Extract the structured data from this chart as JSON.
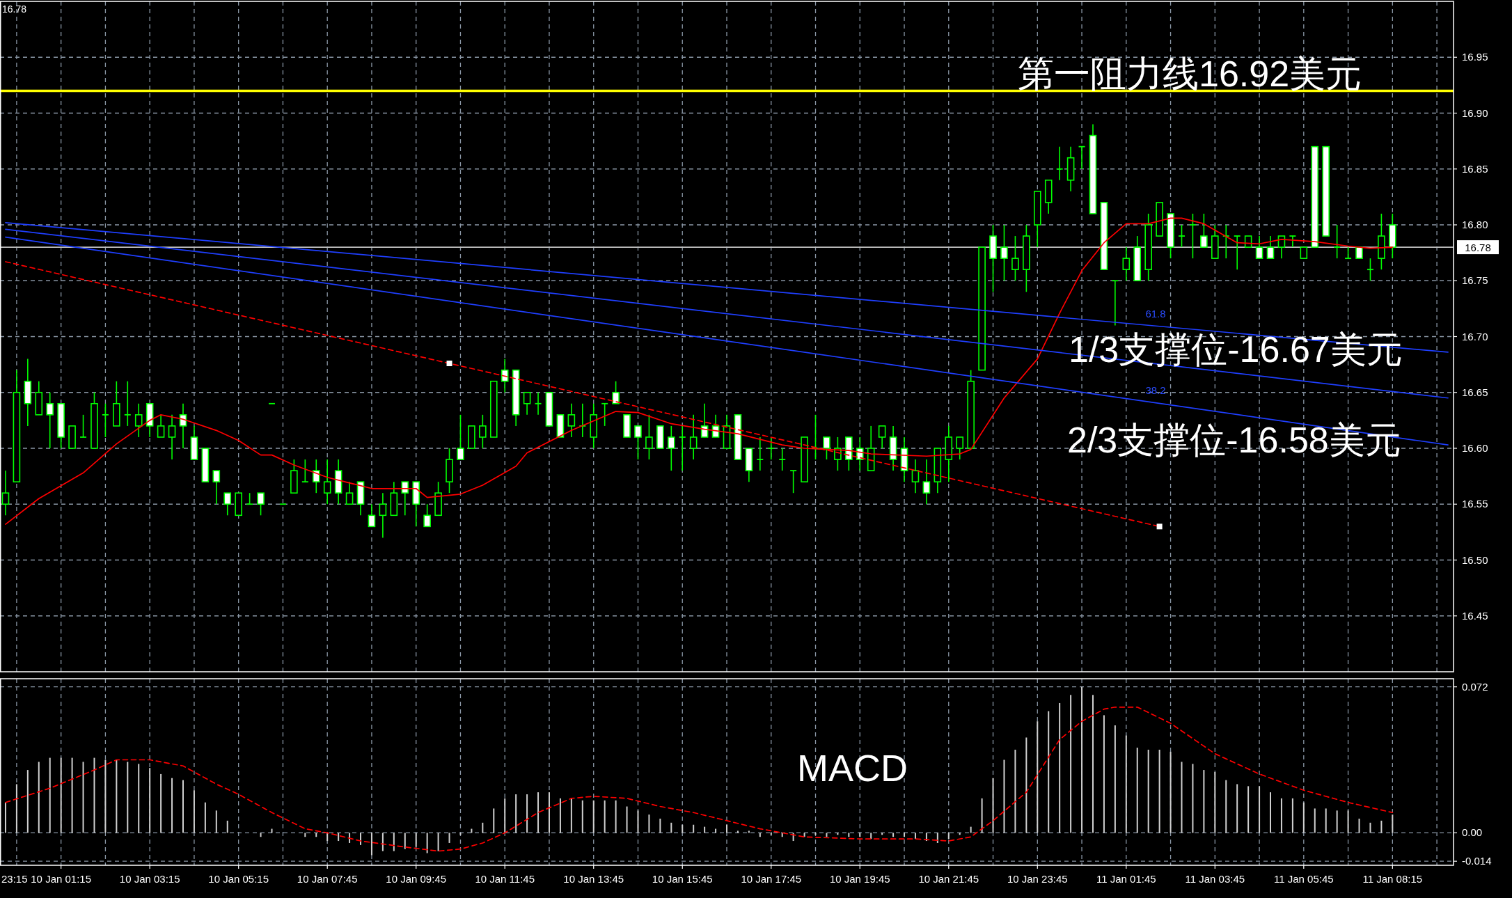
{
  "chart_data": [
    {
      "type": "candlestick",
      "color": "#00ff00",
      "tick_labels": "y",
      "grid": true,
      "categories": [
        null,
        null,
        null,
        null,
        null,
        null,
        null,
        null,
        null,
        null,
        null,
        null,
        null,
        null,
        null,
        null,
        null,
        null,
        null,
        null,
        null,
        null,
        null,
        null,
        null,
        null,
        null,
        null,
        null,
        null,
        null,
        null,
        null,
        null,
        null,
        null,
        null,
        null,
        null,
        null,
        null,
        null,
        null,
        null,
        null,
        null,
        null,
        null,
        null,
        null,
        null,
        null,
        null,
        null,
        null,
        null,
        null,
        null,
        null,
        null,
        null,
        null,
        null,
        null,
        null,
        null,
        null,
        null,
        null,
        null,
        null,
        null,
        null,
        null,
        null,
        null,
        null,
        null,
        null,
        null,
        null,
        null,
        null,
        null,
        null,
        null,
        null,
        null,
        null,
        null,
        null,
        null,
        null,
        null,
        null,
        null,
        null,
        null,
        null,
        null,
        null,
        null,
        null,
        null,
        null,
        null,
        null,
        null,
        null,
        null,
        null,
        null,
        null,
        null,
        null,
        null,
        null,
        null,
        null,
        null,
        null,
        null,
        null,
        null,
        null,
        null,
        null,
        null,
        null,
        null,
        null
      ],
      "ohlc": [
        [
          16.55,
          16.58,
          16.54,
          16.56
        ],
        [
          16.57,
          16.67,
          16.57,
          16.65
        ],
        [
          16.66,
          16.68,
          16.62,
          16.64
        ],
        [
          16.63,
          16.66,
          16.63,
          16.65
        ],
        [
          16.64,
          16.65,
          16.6,
          16.63
        ],
        [
          16.64,
          16.64,
          16.6,
          16.61
        ],
        [
          16.6,
          16.62,
          16.6,
          16.62
        ],
        [
          16.61,
          16.63,
          16.61,
          16.61
        ],
        [
          16.6,
          16.65,
          16.6,
          16.64
        ],
        [
          16.63,
          16.64,
          16.61,
          16.63
        ],
        [
          16.62,
          16.66,
          16.62,
          16.64
        ],
        [
          16.63,
          16.66,
          16.62,
          16.63
        ],
        [
          16.62,
          16.64,
          16.61,
          16.63
        ],
        [
          16.64,
          16.64,
          16.61,
          16.62
        ],
        [
          16.61,
          16.63,
          16.61,
          16.62
        ],
        [
          16.61,
          16.63,
          16.59,
          16.62
        ],
        [
          16.63,
          16.64,
          16.6,
          16.62
        ],
        [
          16.61,
          16.62,
          16.59,
          16.59
        ],
        [
          16.6,
          16.6,
          16.57,
          16.57
        ],
        [
          16.58,
          16.58,
          16.55,
          16.57
        ],
        [
          16.56,
          16.56,
          16.54,
          16.55
        ],
        [
          16.54,
          16.56,
          16.54,
          16.56
        ],
        [
          16.55,
          16.56,
          16.55,
          16.55
        ],
        [
          16.56,
          16.56,
          16.54,
          16.55
        ],
        [
          16.64,
          16.64,
          16.64,
          16.64
        ],
        [
          16.55,
          16.55,
          16.55,
          16.55
        ],
        [
          16.56,
          16.59,
          16.56,
          16.58
        ],
        [
          16.57,
          16.59,
          16.57,
          16.57
        ],
        [
          16.58,
          16.59,
          16.56,
          16.57
        ],
        [
          16.56,
          16.59,
          16.55,
          16.57
        ],
        [
          16.58,
          16.59,
          16.55,
          16.56
        ],
        [
          16.55,
          16.57,
          16.55,
          16.56
        ],
        [
          16.57,
          16.57,
          16.54,
          16.55
        ],
        [
          16.54,
          16.55,
          16.53,
          16.53
        ],
        [
          16.54,
          16.56,
          16.52,
          16.55
        ],
        [
          16.54,
          16.57,
          16.54,
          16.56
        ],
        [
          16.57,
          16.57,
          16.54,
          16.56
        ],
        [
          16.57,
          16.57,
          16.53,
          16.55
        ],
        [
          16.54,
          16.55,
          16.53,
          16.53
        ],
        [
          16.54,
          16.57,
          16.54,
          16.56
        ],
        [
          16.57,
          16.6,
          16.56,
          16.59
        ],
        [
          16.6,
          16.63,
          16.59,
          16.59
        ],
        [
          16.6,
          16.62,
          16.6,
          16.62
        ],
        [
          16.61,
          16.63,
          16.6,
          16.62
        ],
        [
          16.61,
          16.66,
          16.61,
          16.66
        ],
        [
          16.67,
          16.68,
          16.65,
          16.66
        ],
        [
          16.67,
          16.67,
          16.62,
          16.63
        ],
        [
          16.64,
          16.65,
          16.63,
          16.65
        ],
        [
          16.64,
          16.65,
          16.63,
          16.64
        ],
        [
          16.65,
          16.65,
          16.62,
          16.62
        ],
        [
          16.63,
          16.63,
          16.61,
          16.61
        ],
        [
          16.62,
          16.64,
          16.61,
          16.63
        ],
        [
          16.62,
          16.64,
          16.61,
          16.62
        ],
        [
          16.61,
          16.64,
          16.6,
          16.63
        ],
        [
          16.64,
          16.64,
          16.62,
          16.64
        ],
        [
          16.65,
          16.66,
          16.64,
          16.64
        ],
        [
          16.63,
          16.63,
          16.61,
          16.61
        ],
        [
          16.62,
          16.62,
          16.59,
          16.61
        ],
        [
          16.6,
          16.63,
          16.59,
          16.61
        ],
        [
          16.62,
          16.62,
          16.6,
          16.6
        ],
        [
          16.61,
          16.62,
          16.58,
          16.6
        ],
        [
          16.61,
          16.62,
          16.58,
          16.61
        ],
        [
          16.6,
          16.63,
          16.59,
          16.61
        ],
        [
          16.62,
          16.64,
          16.61,
          16.61
        ],
        [
          16.62,
          16.63,
          16.61,
          16.61
        ],
        [
          16.6,
          16.63,
          16.6,
          16.62
        ],
        [
          16.63,
          16.63,
          16.59,
          16.59
        ],
        [
          16.6,
          16.6,
          16.57,
          16.58
        ],
        [
          16.59,
          16.61,
          16.58,
          16.59
        ],
        [
          16.6,
          16.61,
          16.59,
          16.6
        ],
        [
          16.59,
          16.6,
          16.58,
          16.59
        ],
        [
          16.58,
          16.58,
          16.56,
          16.58
        ],
        [
          16.57,
          16.61,
          16.57,
          16.61
        ],
        [
          16.6,
          16.63,
          16.59,
          16.6
        ],
        [
          16.61,
          16.61,
          16.59,
          16.6
        ],
        [
          16.59,
          16.61,
          16.58,
          16.6
        ],
        [
          16.61,
          16.61,
          16.58,
          16.59
        ],
        [
          16.6,
          16.61,
          16.58,
          16.59
        ],
        [
          16.58,
          16.62,
          16.58,
          16.6
        ],
        [
          16.61,
          16.62,
          16.6,
          16.62
        ],
        [
          16.61,
          16.62,
          16.58,
          16.59
        ],
        [
          16.6,
          16.61,
          16.57,
          16.58
        ],
        [
          16.57,
          16.59,
          16.56,
          16.58
        ],
        [
          16.57,
          16.59,
          16.55,
          16.56
        ],
        [
          16.57,
          16.6,
          16.56,
          16.6
        ],
        [
          16.59,
          16.62,
          16.57,
          16.61
        ],
        [
          16.6,
          16.61,
          16.59,
          16.61
        ],
        [
          16.6,
          16.67,
          16.6,
          16.66
        ],
        [
          16.67,
          16.78,
          16.67,
          16.78
        ],
        [
          16.79,
          16.8,
          16.74,
          16.77
        ],
        [
          16.78,
          16.8,
          16.75,
          16.77
        ],
        [
          16.76,
          16.79,
          16.75,
          16.77
        ],
        [
          16.76,
          16.8,
          16.74,
          16.79
        ],
        [
          16.8,
          16.83,
          16.78,
          16.83
        ],
        [
          16.82,
          16.84,
          16.81,
          16.84
        ],
        [
          16.85,
          16.87,
          16.84,
          16.85
        ],
        [
          16.84,
          16.87,
          16.83,
          16.86
        ],
        [
          16.87,
          16.87,
          16.85,
          16.87
        ],
        [
          16.88,
          16.89,
          16.81,
          16.81
        ],
        [
          16.82,
          16.82,
          16.76,
          16.76
        ],
        [
          16.75,
          16.75,
          16.71,
          16.75
        ],
        [
          16.76,
          16.78,
          16.75,
          16.77
        ],
        [
          16.78,
          16.79,
          16.75,
          16.75
        ],
        [
          16.76,
          16.81,
          16.75,
          16.8
        ],
        [
          16.79,
          16.82,
          16.79,
          16.82
        ],
        [
          16.81,
          16.81,
          16.77,
          16.78
        ],
        [
          16.79,
          16.8,
          16.78,
          16.79
        ],
        [
          16.8,
          16.81,
          16.77,
          16.8
        ],
        [
          16.79,
          16.81,
          16.78,
          16.78
        ],
        [
          16.77,
          16.8,
          16.77,
          16.79
        ],
        [
          16.79,
          16.8,
          16.77,
          16.79
        ],
        [
          16.79,
          16.79,
          16.76,
          16.79
        ],
        [
          16.78,
          16.79,
          16.78,
          16.79
        ],
        [
          16.78,
          16.79,
          16.77,
          16.77
        ],
        [
          16.78,
          16.79,
          16.77,
          16.77
        ],
        [
          16.78,
          16.79,
          16.77,
          16.79
        ],
        [
          16.79,
          16.79,
          16.78,
          16.79
        ],
        [
          16.77,
          16.78,
          16.77,
          16.78
        ],
        [
          16.87,
          16.87,
          16.78,
          16.78
        ],
        [
          16.87,
          16.87,
          16.79,
          16.79
        ],
        [
          16.78,
          16.8,
          16.77,
          16.78
        ],
        [
          16.77,
          16.78,
          16.77,
          16.77
        ],
        [
          16.78,
          16.78,
          16.77,
          16.77
        ],
        [
          16.76,
          16.77,
          16.75,
          16.76
        ],
        [
          16.77,
          16.81,
          16.76,
          16.79
        ],
        [
          16.8,
          16.81,
          16.77,
          16.78
        ],
        null,
        null,
        null,
        null,
        null
      ],
      "series": [
        {
          "type": "line",
          "color": "#ff0000",
          "line_style": "solid",
          "values": [
            16.532,
            null,
            null,
            16.555,
            null,
            null,
            null,
            16.578,
            null,
            null,
            16.604,
            null,
            null,
            16.625,
            16.63,
            null,
            16.626,
            null,
            null,
            16.616,
            null,
            16.607,
            null,
            16.594,
            16.594,
            null,
            16.585,
            null,
            null,
            16.574,
            null,
            null,
            null,
            16.564,
            null,
            null,
            null,
            16.564,
            16.556,
            null,
            null,
            16.559,
            null,
            16.567,
            null,
            null,
            16.584,
            16.596,
            null,
            null,
            null,
            16.616,
            null,
            null,
            null,
            16.633,
            null,
            16.632,
            null,
            null,
            16.622,
            null,
            null,
            16.617,
            null,
            null,
            16.613,
            null,
            null,
            null,
            16.603,
            null,
            16.6,
            null,
            null,
            null,
            16.598,
            null,
            16.595,
            null,
            null,
            null,
            null,
            16.593,
            null,
            null,
            16.595,
            16.599,
            null,
            null,
            16.645,
            null,
            null,
            16.68,
            null,
            16.721,
            null,
            16.759,
            null,
            16.784,
            null,
            16.801,
            null,
            16.801,
            null,
            16.806,
            16.806,
            null,
            16.801,
            null,
            null,
            16.784,
            null,
            16.783,
            null,
            16.787,
            null,
            null,
            16.785,
            null,
            null,
            16.781,
            null,
            16.779,
            null,
            16.78,
            null,
            null,
            null,
            null,
            null
          ]
        },
        {
          "type": "line",
          "color": "#1f3fff",
          "line_style": "solid",
          "values": [
            16.802,
            null,
            null,
            null,
            null,
            null,
            null,
            null,
            null,
            null,
            null,
            null,
            null,
            null,
            null,
            null,
            null,
            null,
            null,
            null,
            null,
            null,
            null,
            null,
            null,
            null,
            null,
            null,
            null,
            null,
            null,
            null,
            null,
            null,
            null,
            null,
            null,
            null,
            null,
            null,
            null,
            null,
            null,
            null,
            null,
            null,
            null,
            null,
            null,
            null,
            null,
            null,
            null,
            null,
            null,
            null,
            null,
            null,
            null,
            null,
            null,
            null,
            null,
            null,
            null,
            null,
            null,
            null,
            null,
            null,
            null,
            null,
            null,
            null,
            null,
            null,
            null,
            null,
            null,
            null,
            null,
            null,
            null,
            null,
            null,
            null,
            null,
            null,
            null,
            null,
            null,
            null,
            null,
            null,
            null,
            null,
            null,
            null,
            null,
            null,
            null,
            null,
            null,
            null,
            null,
            null,
            null,
            null,
            null,
            null,
            null,
            null,
            null,
            null,
            null,
            null,
            null,
            null,
            null,
            null,
            null,
            null,
            null,
            null,
            null,
            null,
            null,
            null,
            null,
            null,
            16.686
          ]
        },
        {
          "type": "line",
          "color": "#1f3fff",
          "line_style": "solid",
          "values": [
            16.796,
            null,
            null,
            null,
            null,
            null,
            null,
            null,
            null,
            null,
            null,
            null,
            null,
            null,
            null,
            null,
            null,
            null,
            null,
            null,
            null,
            null,
            null,
            null,
            null,
            null,
            null,
            null,
            null,
            null,
            null,
            null,
            null,
            null,
            null,
            null,
            null,
            null,
            null,
            null,
            null,
            null,
            null,
            null,
            null,
            null,
            null,
            null,
            null,
            null,
            null,
            null,
            null,
            null,
            null,
            null,
            null,
            null,
            null,
            null,
            null,
            null,
            null,
            null,
            null,
            null,
            null,
            null,
            null,
            null,
            null,
            null,
            null,
            null,
            null,
            null,
            null,
            null,
            null,
            null,
            null,
            null,
            null,
            null,
            null,
            null,
            null,
            null,
            null,
            null,
            null,
            null,
            null,
            null,
            null,
            null,
            null,
            null,
            null,
            null,
            null,
            null,
            null,
            null,
            null,
            null,
            null,
            null,
            null,
            null,
            null,
            null,
            null,
            null,
            null,
            null,
            null,
            null,
            null,
            null,
            null,
            null,
            null,
            null,
            null,
            null,
            null,
            null,
            null,
            null,
            16.645
          ]
        },
        {
          "type": "line",
          "color": "#1f3fff",
          "line_style": "solid",
          "values": [
            16.789,
            null,
            null,
            null,
            null,
            null,
            null,
            null,
            null,
            null,
            null,
            null,
            null,
            null,
            null,
            null,
            null,
            null,
            null,
            null,
            null,
            null,
            null,
            null,
            null,
            null,
            null,
            null,
            null,
            null,
            null,
            null,
            null,
            null,
            null,
            null,
            null,
            null,
            null,
            null,
            null,
            null,
            null,
            null,
            null,
            null,
            null,
            null,
            null,
            null,
            null,
            null,
            null,
            null,
            null,
            null,
            null,
            null,
            null,
            null,
            null,
            null,
            null,
            null,
            null,
            null,
            null,
            null,
            null,
            null,
            null,
            null,
            null,
            null,
            null,
            null,
            null,
            null,
            null,
            null,
            null,
            null,
            null,
            null,
            null,
            null,
            null,
            null,
            null,
            null,
            null,
            null,
            null,
            null,
            null,
            null,
            null,
            null,
            null,
            null,
            null,
            null,
            null,
            null,
            null,
            null,
            null,
            null,
            null,
            null,
            null,
            null,
            null,
            null,
            null,
            null,
            null,
            null,
            null,
            null,
            null,
            null,
            null,
            null,
            null,
            null,
            null,
            null,
            null,
            null,
            16.603
          ]
        },
        {
          "type": "line",
          "color": "#ff0000",
          "line_style": "dashed",
          "values": [
            16.767,
            null,
            null,
            null,
            null,
            null,
            null,
            null,
            null,
            null,
            null,
            null,
            null,
            null,
            null,
            null,
            null,
            null,
            null,
            null,
            null,
            null,
            null,
            null,
            null,
            null,
            null,
            null,
            null,
            null,
            null,
            null,
            null,
            null,
            null,
            null,
            null,
            null,
            null,
            null,
            16.676,
            null,
            null,
            null,
            null,
            null,
            null,
            null,
            null,
            null,
            null,
            null,
            null,
            null,
            null,
            null,
            null,
            null,
            null,
            null,
            null,
            null,
            null,
            null,
            null,
            null,
            null,
            null,
            null,
            null,
            null,
            null,
            null,
            null,
            null,
            null,
            null,
            null,
            null,
            null,
            null,
            null,
            null,
            null,
            null,
            null,
            null,
            null,
            null,
            null,
            null,
            null,
            null,
            null,
            null,
            null,
            null,
            null,
            null,
            null,
            null,
            null,
            null,
            null,
            16.53,
            null,
            null,
            null,
            null,
            null,
            null,
            null,
            null,
            null,
            null,
            null,
            null,
            null,
            null,
            null,
            null,
            null,
            null,
            null,
            null,
            null,
            null,
            null,
            null,
            null,
            null
          ]
        },
        {
          "type": "scatter",
          "color": "#ffffff",
          "marker": "square",
          "values": [
            null,
            null,
            null,
            null,
            null,
            null,
            null,
            null,
            null,
            null,
            null,
            null,
            null,
            null,
            null,
            null,
            null,
            null,
            null,
            null,
            null,
            null,
            null,
            null,
            null,
            null,
            null,
            null,
            null,
            null,
            null,
            null,
            null,
            null,
            null,
            null,
            null,
            null,
            null,
            null,
            16.676,
            null,
            null,
            null,
            null,
            null,
            null,
            null,
            null,
            null,
            null,
            null,
            null,
            null,
            null,
            null,
            null,
            null,
            null,
            null,
            null,
            null,
            null,
            null,
            null,
            null,
            null,
            null,
            null,
            null,
            null,
            null,
            null,
            null,
            null,
            null,
            null,
            null,
            null,
            null,
            null,
            null,
            null,
            null,
            null,
            null,
            null,
            null,
            null,
            null,
            null,
            null,
            null,
            null,
            null,
            null,
            null,
            null,
            null,
            null,
            null,
            null,
            null,
            null,
            16.53,
            null,
            null,
            null,
            null,
            null,
            null,
            null,
            null,
            null,
            null,
            null,
            null,
            null,
            null,
            null,
            null,
            null,
            null,
            null,
            null,
            null,
            null,
            null,
            null,
            null,
            null
          ]
        }
      ],
      "ylim": [
        16.4,
        17.0
      ],
      "yticks": [
        {
          "value": 16.45,
          "label": "16.45"
        },
        {
          "value": 16.5,
          "label": "16.50"
        },
        16.55,
        {
          "value": 16.6,
          "label": "16.60"
        },
        16.65,
        {
          "value": 16.7,
          "label": "16.70"
        },
        16.75,
        {
          "value": 16.8,
          "label": "16.80"
        },
        16.85,
        {
          "value": 16.9,
          "label": "16.90"
        },
        16.95
      ],
      "ref_lines": [
        {
          "axis": "y",
          "value": 16.92,
          "color": "#ffff00"
        },
        {
          "axis": "y",
          "value": 16.78,
          "color": "#c0c0c0",
          "label": "16.78"
        }
      ],
      "annotations": [
        "16.78",
        "61.8",
        "38.2",
        "第一阻力线16.92美元",
        "1/3支撑位-16.67美元",
        "2/3支撑位-16.58美元"
      ]
    },
    {
      "type": "bar",
      "grid": true,
      "categories": [
        null,
        null,
        null,
        null,
        null,
        "10 Jan 01:15",
        null,
        null,
        null,
        null,
        null,
        null,
        null,
        "10 Jan 03:15",
        null,
        null,
        null,
        null,
        null,
        null,
        null,
        "10 Jan 05:15",
        null,
        null,
        null,
        null,
        null,
        null,
        null,
        "10 Jan 07:45",
        null,
        null,
        null,
        null,
        null,
        null,
        null,
        "10 Jan 09:45",
        null,
        null,
        null,
        null,
        null,
        null,
        null,
        "10 Jan 11:45",
        null,
        null,
        null,
        null,
        null,
        null,
        null,
        "10 Jan 13:45",
        null,
        null,
        null,
        null,
        null,
        null,
        null,
        "10 Jan 15:45",
        null,
        null,
        null,
        null,
        null,
        null,
        null,
        "10 Jan 17:45",
        null,
        null,
        null,
        null,
        null,
        null,
        null,
        "10 Jan 19:45",
        null,
        null,
        null,
        null,
        null,
        null,
        null,
        "10 Jan 21:45",
        null,
        null,
        null,
        null,
        null,
        null,
        null,
        "10 Jan 23:45",
        null,
        null,
        null,
        null,
        null,
        null,
        null,
        "11 Jan 01:45",
        null,
        null,
        null,
        null,
        null,
        null,
        null,
        "11 Jan 03:45",
        null,
        null,
        null,
        null,
        null,
        null,
        null,
        "11 Jan 05:45",
        null,
        null,
        null,
        null,
        null,
        null,
        null,
        "11 Jan 08:15",
        null,
        null,
        null,
        null,
        null
      ],
      "series": [
        {
          "type": "bar",
          "color": "#d0d0d0",
          "values": [
            0.015,
            0.024,
            0.031,
            0.035,
            0.037,
            0.037,
            0.037,
            0.035,
            0.037,
            0.036,
            0.036,
            0.035,
            0.034,
            0.032,
            0.029,
            0.027,
            0.026,
            0.021,
            0.015,
            0.011,
            0.006,
            0,
            0,
            -0.002,
            0.002,
            0,
            0,
            -0.002,
            -0.002,
            -0.004,
            -0.004,
            -0.005,
            -0.006,
            -0.011,
            -0.009,
            -0.009,
            -0.008,
            -0.007,
            -0.01,
            -0.009,
            -0.005,
            -0.001,
            0.002,
            0.005,
            0.012,
            0.017,
            0.019,
            0.019,
            0.02,
            0.02,
            0.017,
            0.017,
            0.016,
            0.016,
            0.016,
            0.016,
            0.013,
            0.011,
            0.009,
            0.007,
            0.005,
            0.004,
            0.004,
            0.003,
            0.002,
            0.004,
            0.001,
            0.001,
            -0.002,
            -0.001,
            -0.002,
            -0.004,
            -0.002,
            -0.001,
            -0.002,
            -0.001,
            -0.002,
            -0.002,
            -0.003,
            -0.001,
            -0.002,
            -0.002,
            -0.003,
            -0.004,
            -0.005,
            -0.003,
            -0.001,
            0.003,
            0.017,
            0.027,
            0.036,
            0.041,
            0.047,
            0.055,
            0.06,
            0.064,
            0.068,
            0.072,
            0.068,
            0.058,
            0.053,
            0.048,
            0.042,
            0.041,
            0.041,
            0.04,
            0.035,
            0.034,
            0.031,
            0.03,
            0.026,
            0.024,
            0.023,
            0.023,
            0.02,
            0.017,
            0.017,
            0.015,
            0.012,
            0.012,
            0.011,
            0.011,
            0.007,
            0.005,
            0.006,
            0.009,
            null,
            null,
            null,
            null,
            null
          ]
        },
        {
          "type": "line",
          "color": "#ff0000",
          "line_style": "dashed",
          "values": [
            0.015,
            null,
            null,
            null,
            0.022,
            null,
            null,
            null,
            0.031,
            null,
            0.036,
            null,
            null,
            0.036,
            null,
            null,
            0.033,
            null,
            null,
            0.024,
            null,
            0.019,
            null,
            null,
            0.01,
            null,
            null,
            0.002,
            null,
            0,
            null,
            null,
            -0.004,
            null,
            null,
            null,
            -0.007,
            null,
            null,
            -0.009,
            null,
            -0.008,
            null,
            -0.005,
            null,
            0,
            null,
            null,
            0.01,
            null,
            null,
            0.017,
            null,
            0.018,
            null,
            null,
            0.017,
            null,
            null,
            0.013,
            null,
            null,
            0.01,
            null,
            null,
            0.006,
            null,
            null,
            0.002,
            null,
            null,
            null,
            -0.002,
            null,
            null,
            null,
            null,
            -0.003,
            null,
            null,
            null,
            null,
            -0.003,
            null,
            null,
            -0.004,
            null,
            -0.002,
            null,
            0.006,
            null,
            null,
            0.02,
            null,
            null,
            0.046,
            null,
            0.055,
            null,
            0.061,
            0.062,
            null,
            0.062,
            null,
            null,
            0.054,
            null,
            null,
            null,
            0.039,
            null,
            null,
            null,
            0.029,
            null,
            null,
            null,
            0.021,
            null,
            null,
            null,
            0.015,
            null,
            null,
            null,
            0.01,
            null,
            null,
            null,
            null,
            null
          ]
        }
      ],
      "ylim": [
        -0.016,
        0.076
      ],
      "yticks": [
        {
          "value": 0.072,
          "label": "0.072"
        },
        {
          "value": 0,
          "label": "0.00"
        },
        {
          "value": -0.014,
          "label": "-0.014"
        }
      ],
      "annotations": [
        "MACD",
        "23:15"
      ]
    }
  ]
}
